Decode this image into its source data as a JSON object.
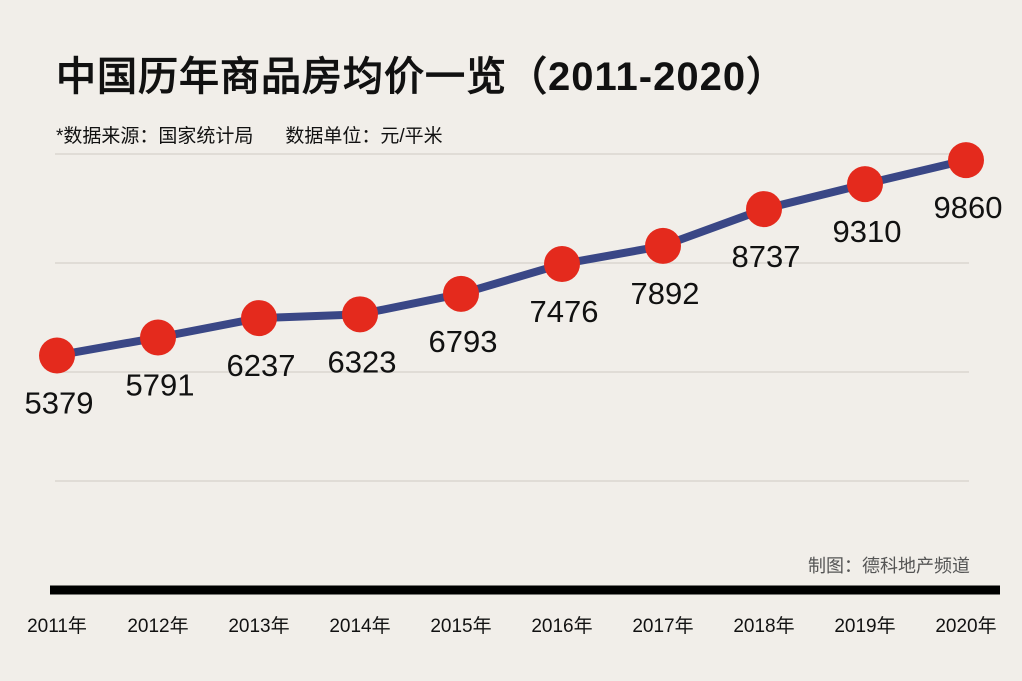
{
  "chart_data": {
    "type": "line",
    "title": "中国历年商品房均价一览（2011-2020）",
    "source_note": "*数据来源：国家统计局",
    "unit_note": "数据单位：元/平米",
    "credit": "制图：德科地产频道",
    "categories": [
      "2011年",
      "2012年",
      "2013年",
      "2014年",
      "2015年",
      "2016年",
      "2017年",
      "2018年",
      "2019年",
      "2020年"
    ],
    "values": [
      5379,
      5791,
      6237,
      6323,
      6793,
      7476,
      7892,
      8737,
      9310,
      9860
    ],
    "data_labels": [
      "5379",
      "5791",
      "6237",
      "6323",
      "6793",
      "7476",
      "7892",
      "8737",
      "9310",
      "9860"
    ],
    "ylim": [
      0,
      10000
    ],
    "gridlines": [
      2500,
      5000,
      7500,
      10000
    ],
    "grid": true,
    "colors": {
      "line": "#3a4786",
      "marker": "#e42a1d",
      "grid": "#d6d2cc",
      "axis": "#000000",
      "background": "#f1eee9"
    }
  }
}
